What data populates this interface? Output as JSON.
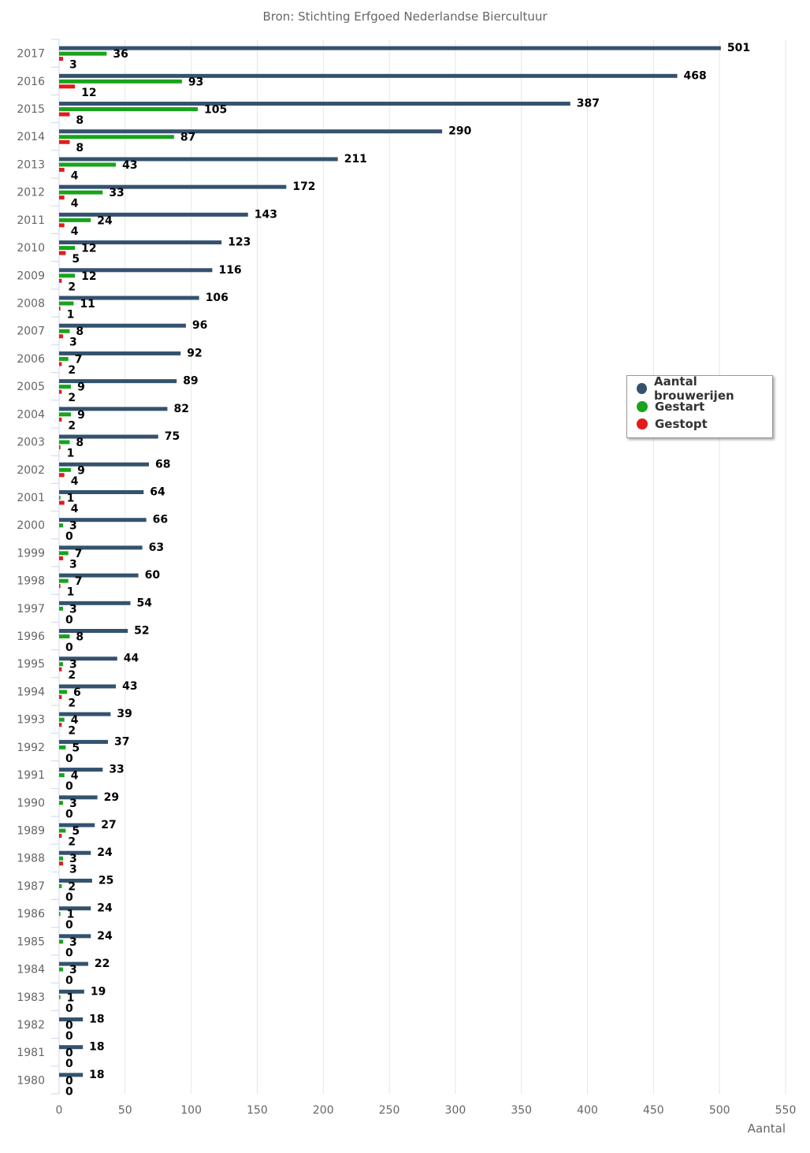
{
  "chart_data": {
    "type": "bar",
    "orientation": "horizontal",
    "subtitle": "Bron: Stichting Erfgoed Nederlandse Biercultuur",
    "xlabel": "Aantal",
    "ylabel": "",
    "xlim": [
      0,
      550
    ],
    "xticks": [
      0,
      50,
      100,
      150,
      200,
      250,
      300,
      350,
      400,
      450,
      500,
      550
    ],
    "grid": true,
    "legend_position": "right",
    "categories": [
      "2017",
      "2016",
      "2015",
      "2014",
      "2013",
      "2012",
      "2011",
      "2010",
      "2009",
      "2008",
      "2007",
      "2006",
      "2005",
      "2004",
      "2003",
      "2002",
      "2001",
      "2000",
      "1999",
      "1998",
      "1997",
      "1996",
      "1995",
      "1994",
      "1993",
      "1992",
      "1991",
      "1990",
      "1989",
      "1988",
      "1987",
      "1986",
      "1985",
      "1984",
      "1983",
      "1982",
      "1981",
      "1980"
    ],
    "series": [
      {
        "name": "Aantal brouwerijen",
        "color": "#34526e",
        "values": [
          501,
          468,
          387,
          290,
          211,
          172,
          143,
          123,
          116,
          106,
          96,
          92,
          89,
          82,
          75,
          68,
          64,
          66,
          63,
          60,
          54,
          52,
          44,
          43,
          39,
          37,
          33,
          29,
          27,
          24,
          25,
          24,
          24,
          22,
          19,
          18,
          18,
          18
        ]
      },
      {
        "name": "Gestart",
        "color": "#18a31b",
        "values": [
          36,
          93,
          105,
          87,
          43,
          33,
          24,
          12,
          12,
          11,
          8,
          7,
          9,
          9,
          8,
          9,
          1,
          3,
          7,
          7,
          3,
          8,
          3,
          6,
          4,
          5,
          4,
          3,
          5,
          3,
          2,
          1,
          3,
          3,
          1,
          0,
          0,
          0
        ]
      },
      {
        "name": "Gestopt",
        "color": "#e41a1a",
        "values": [
          3,
          12,
          8,
          8,
          4,
          4,
          4,
          5,
          2,
          1,
          3,
          2,
          2,
          2,
          1,
          4,
          4,
          0,
          3,
          1,
          0,
          0,
          2,
          2,
          2,
          0,
          0,
          0,
          2,
          3,
          0,
          0,
          0,
          0,
          0,
          0,
          0,
          0
        ]
      }
    ]
  }
}
